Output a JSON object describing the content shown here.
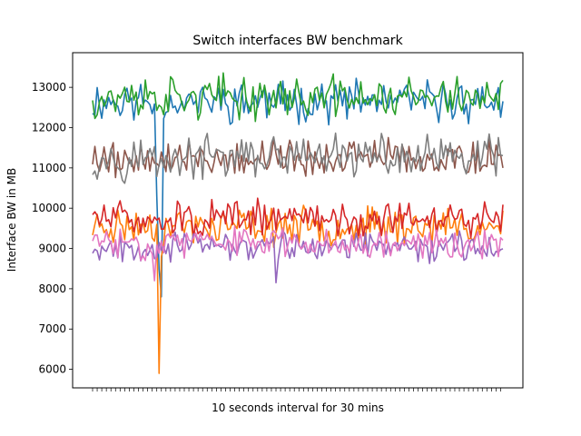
{
  "chart_data": {
    "type": "line",
    "title": "Switch interfaces BW benchmark",
    "xlabel": "10 seconds interval for 30 mins",
    "ylabel": "Interface BW in MB",
    "ylim": [
      5540,
      13860
    ],
    "yticks": [
      6000,
      7000,
      8000,
      9000,
      10000,
      11000,
      12000,
      13000
    ],
    "x_count": 180,
    "x_tick_labels": "not legible",
    "grid": false,
    "legend": "none",
    "series": [
      {
        "color": "#1f77b4",
        "base": 12650,
        "amp": 360,
        "seed": 11,
        "spikes": [
          {
            "x": 29,
            "y": 8500
          },
          {
            "x": 30,
            "y": 7800
          },
          {
            "x": 28,
            "y": 10300
          }
        ]
      },
      {
        "color": "#ff7f0e",
        "base": 9550,
        "amp": 330,
        "seed": 23,
        "spikes": [
          {
            "x": 29,
            "y": 5900
          },
          {
            "x": 30,
            "y": 8800
          }
        ]
      },
      {
        "color": "#2ca02c",
        "base": 12750,
        "amp": 380,
        "seed": 37,
        "spikes": []
      },
      {
        "color": "#d62728",
        "base": 9750,
        "amp": 320,
        "seed": 51,
        "spikes": []
      },
      {
        "color": "#9467bd",
        "base": 9050,
        "amp": 260,
        "seed": 67,
        "spikes": [
          {
            "x": 80,
            "y": 8150
          }
        ]
      },
      {
        "color": "#8c564b",
        "base": 11250,
        "amp": 330,
        "seed": 79,
        "spikes": []
      },
      {
        "color": "#e377c2",
        "base": 9150,
        "amp": 280,
        "seed": 83,
        "spikes": [
          {
            "x": 27,
            "y": 8200
          }
        ]
      },
      {
        "color": "#7f7f7f",
        "base": 11250,
        "amp": 380,
        "seed": 97,
        "spikes": []
      }
    ]
  }
}
